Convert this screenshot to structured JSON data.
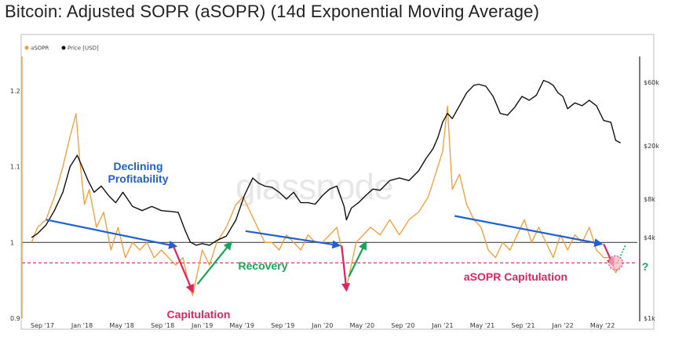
{
  "title": "Bitcoin: Adjusted SOPR (aSOPR) (14d Exponential Moving Average)",
  "watermark": "glassnode",
  "chart_data": {
    "type": "line",
    "x_ticks": [
      "Sep '17",
      "Jan '18",
      "May '18",
      "Sep '18",
      "Jan '19",
      "May '19",
      "Sep '19",
      "Jan '20",
      "May '20",
      "Sep '20",
      "Jan '21",
      "May '21",
      "Sep '21",
      "Jan '22",
      "May '22"
    ],
    "y_left_ticks": [
      "0.9",
      "1",
      "1.1",
      "1.2"
    ],
    "y_left_range": [
      0.9,
      1.25
    ],
    "y_right_ticks": [
      "$1k",
      "$4k",
      "$8k",
      "$20k",
      "$60k"
    ],
    "y_right_scale": "log",
    "y_right_range": [
      1000,
      80000
    ],
    "legend": [
      "aSOPR",
      "Price [USD]"
    ],
    "legend_placement": "top-left",
    "reference_lines": [
      {
        "value": 1.0,
        "axis": "left",
        "style": "solid",
        "color": "#444444"
      },
      {
        "value": 0.973,
        "axis": "left",
        "style": "dashed",
        "color": "#e0245e"
      }
    ],
    "series": [
      {
        "name": "aSOPR",
        "axis": "left",
        "color": "#f39c34",
        "x": [
          2017.58,
          2017.63,
          2017.7,
          2017.77,
          2017.84,
          2017.9,
          2017.95,
          2017.98,
          2018.02,
          2018.06,
          2018.12,
          2018.18,
          2018.24,
          2018.3,
          2018.36,
          2018.42,
          2018.48,
          2018.54,
          2018.6,
          2018.66,
          2018.72,
          2018.78,
          2018.84,
          2018.88,
          2018.92,
          2018.96,
          2019.0,
          2019.06,
          2019.12,
          2019.2,
          2019.28,
          2019.34,
          2019.4,
          2019.46,
          2019.52,
          2019.58,
          2019.64,
          2019.7,
          2019.76,
          2019.82,
          2019.88,
          2019.94,
          2020.0,
          2020.06,
          2020.12,
          2020.16,
          2020.2,
          2020.24,
          2020.28,
          2020.34,
          2020.4,
          2020.48,
          2020.56,
          2020.64,
          2020.72,
          2020.8,
          2020.88,
          2020.94,
          2021.0,
          2021.04,
          2021.08,
          2021.14,
          2021.2,
          2021.26,
          2021.32,
          2021.38,
          2021.44,
          2021.5,
          2021.56,
          2021.62,
          2021.68,
          2021.74,
          2021.8,
          2021.86,
          2021.92,
          2021.98,
          2022.04,
          2022.1,
          2022.16,
          2022.22,
          2022.28,
          2022.34,
          2022.4,
          2022.44,
          2022.48
        ],
        "y": [
          1.0,
          1.02,
          1.03,
          1.06,
          1.1,
          1.14,
          1.17,
          1.11,
          1.05,
          1.07,
          1.02,
          1.04,
          0.99,
          1.02,
          0.98,
          1.0,
          0.99,
          1.0,
          0.98,
          0.99,
          0.98,
          0.97,
          0.98,
          0.95,
          0.93,
          0.96,
          0.99,
          0.97,
          1.0,
          1.02,
          1.05,
          1.06,
          1.04,
          1.02,
          1.0,
          1.0,
          0.99,
          1.01,
          1.0,
          0.99,
          1.01,
          1.0,
          1.0,
          1.01,
          1.02,
          0.99,
          0.94,
          0.97,
          1.0,
          1.01,
          1.02,
          1.01,
          1.03,
          1.01,
          1.03,
          1.04,
          1.06,
          1.09,
          1.12,
          1.18,
          1.07,
          1.09,
          1.05,
          1.03,
          1.02,
          0.99,
          0.98,
          1.0,
          0.99,
          1.01,
          1.03,
          1.0,
          1.02,
          1.0,
          0.98,
          1.01,
          0.99,
          1.01,
          1.0,
          1.02,
          0.99,
          0.98,
          0.98,
          0.96,
          0.97
        ]
      },
      {
        "name": "Price [USD]",
        "axis": "right",
        "color": "#111111",
        "x": [
          2017.58,
          2017.63,
          2017.7,
          2017.77,
          2017.84,
          2017.9,
          2017.96,
          2018.0,
          2018.05,
          2018.1,
          2018.16,
          2018.22,
          2018.28,
          2018.34,
          2018.42,
          2018.5,
          2018.58,
          2018.66,
          2018.74,
          2018.8,
          2018.86,
          2018.9,
          2018.95,
          2019.0,
          2019.06,
          2019.12,
          2019.2,
          2019.28,
          2019.35,
          2019.42,
          2019.47,
          2019.52,
          2019.58,
          2019.64,
          2019.7,
          2019.76,
          2019.82,
          2019.88,
          2019.94,
          2020.0,
          2020.06,
          2020.12,
          2020.18,
          2020.2,
          2020.24,
          2020.3,
          2020.36,
          2020.42,
          2020.48,
          2020.56,
          2020.64,
          2020.72,
          2020.8,
          2020.86,
          2020.92,
          2020.96,
          2021.0,
          2021.04,
          2021.08,
          2021.14,
          2021.2,
          2021.26,
          2021.3,
          2021.36,
          2021.42,
          2021.48,
          2021.54,
          2021.6,
          2021.66,
          2021.72,
          2021.78,
          2021.84,
          2021.88,
          2021.92,
          2021.96,
          2022.0,
          2022.04,
          2022.1,
          2022.16,
          2022.22,
          2022.28,
          2022.34,
          2022.4,
          2022.44,
          2022.48
        ],
        "y": [
          4000,
          4300,
          5000,
          6500,
          9000,
          14000,
          17000,
          14000,
          11000,
          9000,
          10000,
          8500,
          7500,
          9000,
          7000,
          6500,
          7000,
          6500,
          6400,
          6300,
          4500,
          3700,
          3500,
          3600,
          3500,
          3800,
          4100,
          5500,
          8500,
          11500,
          10500,
          10000,
          9800,
          9000,
          8000,
          9000,
          7500,
          7500,
          7300,
          8500,
          9500,
          10000,
          7000,
          5500,
          6800,
          7500,
          8500,
          9500,
          9300,
          11000,
          11500,
          11000,
          13000,
          16000,
          19000,
          23000,
          30000,
          35000,
          32000,
          40000,
          50000,
          57000,
          58000,
          56000,
          47000,
          35000,
          34000,
          39000,
          47000,
          44000,
          48000,
          62000,
          60000,
          57000,
          50000,
          47000,
          38000,
          42000,
          40000,
          44000,
          40000,
          31000,
          30000,
          22000,
          21000
        ]
      }
    ],
    "annotations": [
      {
        "text": "Declining\nProfitability",
        "color": "#1f5fd6"
      },
      {
        "text": "Recovery",
        "color": "#18a558"
      },
      {
        "text": "Capitulation",
        "color": "#e0245e"
      },
      {
        "text": "aSOPR Capitulation",
        "color": "#e0245e"
      },
      {
        "text": "?",
        "color": "#18a558"
      }
    ],
    "trend_arrows": [
      {
        "color": "#1f5fd6",
        "from": [
          2017.7,
          1.03
        ],
        "to": [
          2018.78,
          0.995
        ]
      },
      {
        "color": "#e0245e",
        "from": [
          2018.76,
          0.995
        ],
        "to": [
          2018.92,
          0.935
        ]
      },
      {
        "color": "#18a558",
        "from": [
          2018.96,
          0.945
        ],
        "to": [
          2019.24,
          1.0
        ]
      },
      {
        "color": "#1f5fd6",
        "from": [
          2019.36,
          1.015
        ],
        "to": [
          2020.14,
          0.996
        ]
      },
      {
        "color": "#e0245e",
        "from": [
          2020.16,
          0.996
        ],
        "to": [
          2020.2,
          0.937
        ]
      },
      {
        "color": "#18a558",
        "from": [
          2020.22,
          0.955
        ],
        "to": [
          2020.36,
          1.0
        ]
      },
      {
        "color": "#1f5fd6",
        "from": [
          2021.1,
          1.035
        ],
        "to": [
          2022.32,
          0.998
        ]
      },
      {
        "color": "#e0245e",
        "from": [
          2022.34,
          0.998
        ],
        "to": [
          2022.42,
          0.97
        ]
      }
    ],
    "highlight": {
      "x": 2022.44,
      "y": 0.973,
      "color": "#e0245e"
    },
    "grid": false
  }
}
